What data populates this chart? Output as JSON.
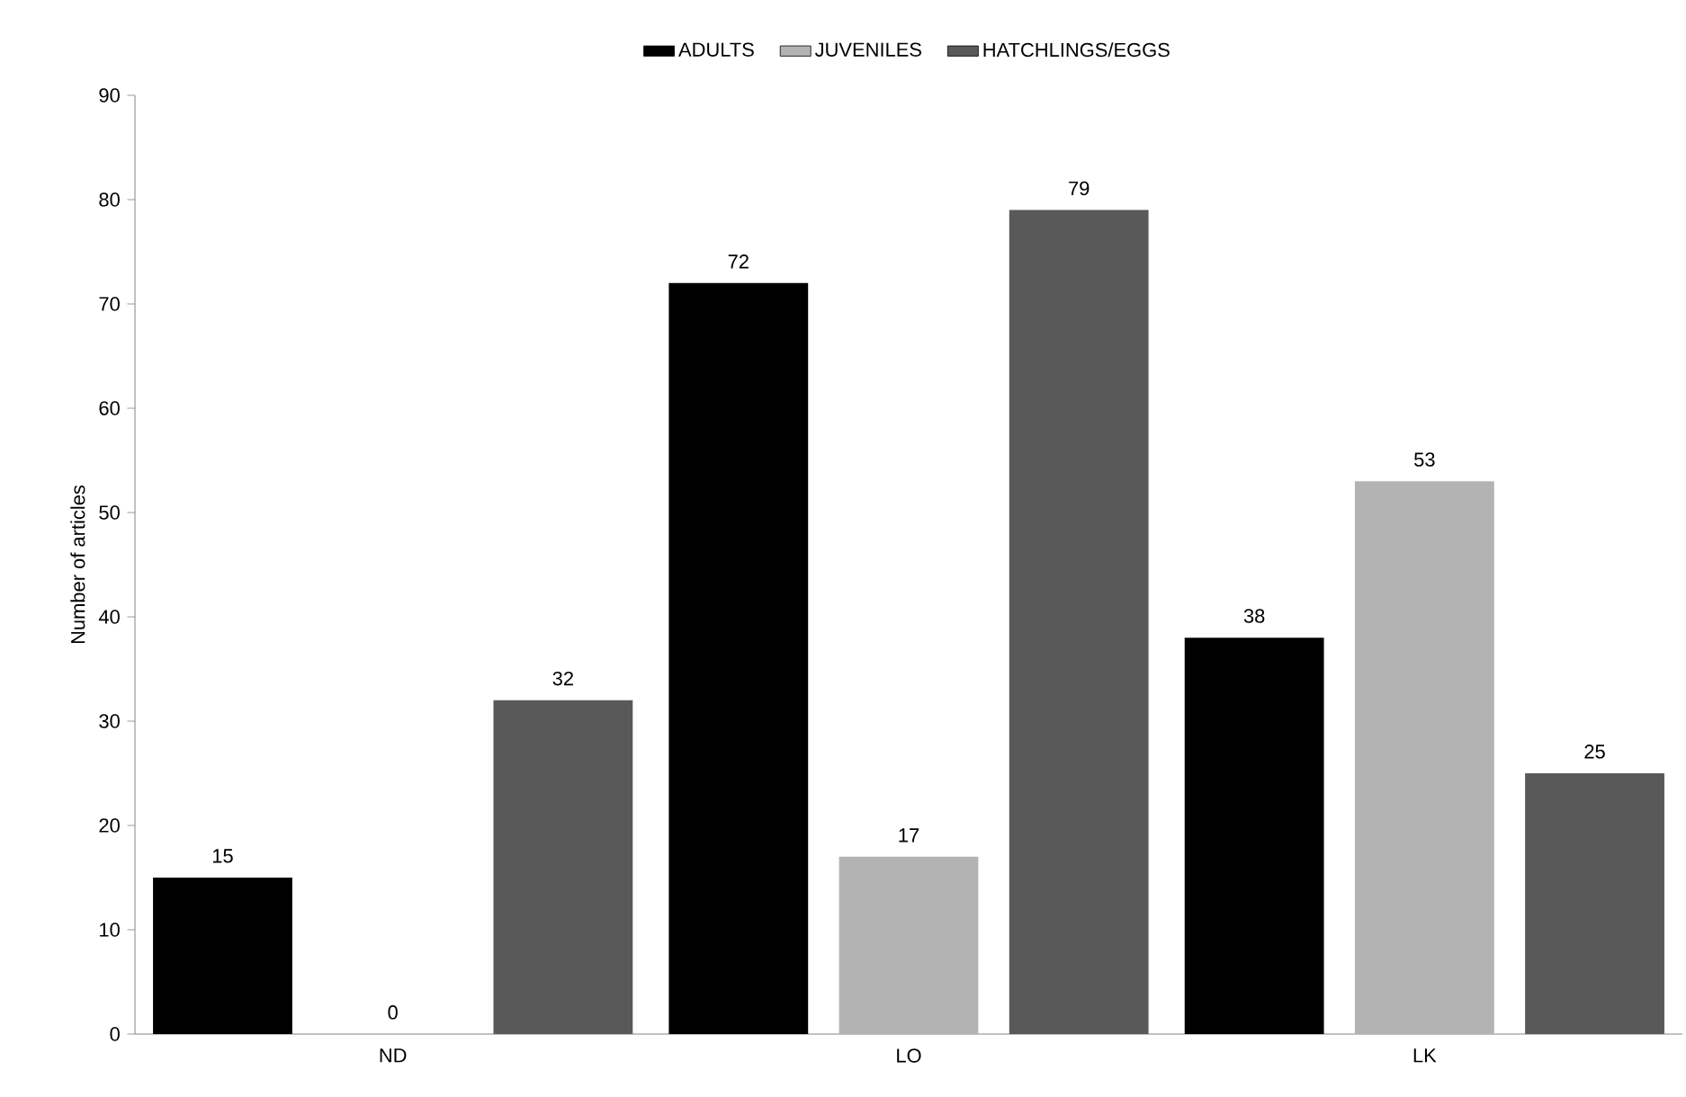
{
  "chart_data": {
    "type": "bar",
    "ylabel": "Number of articles",
    "categories": [
      "ND",
      "LO",
      "LK"
    ],
    "series": [
      {
        "name": "ADULTS",
        "color": "#000000",
        "values": [
          15,
          72,
          38
        ]
      },
      {
        "name": "JUVENILES",
        "color": "#b3b3b3",
        "values": [
          0,
          17,
          53
        ]
      },
      {
        "name": "HATCHLINGS/EGGS",
        "color": "#595959",
        "values": [
          32,
          79,
          25
        ]
      }
    ],
    "ylim": [
      0,
      90
    ],
    "yticks": [
      0,
      10,
      20,
      30,
      40,
      50,
      60,
      70,
      80,
      90
    ],
    "data_labels": true,
    "legend": "top",
    "grid": false
  }
}
